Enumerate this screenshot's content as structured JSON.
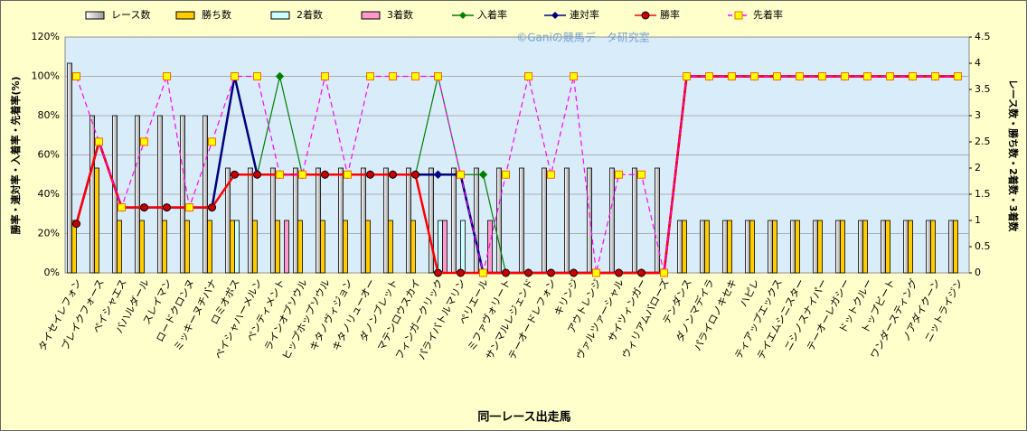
{
  "chart_data": {
    "type": "bar",
    "title": "©Ganiの競馬データ研究室",
    "xlabel": "同一レース出走馬",
    "ylabel": "勝率・連対率・入着率・先着率(%)",
    "y2label": "レース数・勝ち数・2着数・3着数",
    "categories": [
      "タイセイレフォン",
      "ブレイクフォース",
      "ペイシャエス",
      "バハルダール",
      "スレイマン",
      "ロードクロンヌ",
      "ミッキーヌチバナ",
      "ロミオボス",
      "ペイシャハーメルン",
      "ペンティメント",
      "ラインオブソウル",
      "ヒップホップソウル",
      "キタノヴィジョン",
      "キタノリューオー",
      "ダノンブレット",
      "マテンロウスカイ",
      "フィンガークリック",
      "パライバトルマリン",
      "ペリエール",
      "ミファヴォリート",
      "サンマルレジェンド",
      "テーオードレフォン",
      "キリンジ",
      "アウトレンジ",
      "ヴァルツァーシャル",
      "サイツィンガー",
      "ウィリアムバローズ",
      "テンダンス",
      "ダノンマデイラ",
      "パライロノキセキ",
      "ハピレ",
      "ティアップエックス",
      "テイエムシニスター",
      "ニシノスナイパー",
      "テーオーレガシー",
      "ドットクルー",
      "トップビート",
      "ワンダースティング",
      "ノアダイクーン",
      "ニットライジン"
    ],
    "ylim": [
      0,
      120
    ],
    "yticks": [
      {
        "value": 0,
        "label": "0%"
      },
      {
        "value": 20,
        "label": "20%"
      },
      {
        "value": 40,
        "label": "40%"
      },
      {
        "value": 60,
        "label": "60%"
      },
      {
        "value": 80,
        "label": "80%"
      },
      {
        "value": 100,
        "label": "100%"
      },
      {
        "value": 120,
        "label": "120%"
      }
    ],
    "y2lim": [
      0,
      4.5
    ],
    "y2ticks": [
      0,
      0.5,
      1,
      1.5,
      2,
      2.5,
      3,
      3.5,
      4,
      4.5
    ],
    "grid": true,
    "series": [
      {
        "name": "レース数",
        "type": "bar",
        "axis": "y2",
        "color": "#f4f4f4",
        "values": [
          4,
          3,
          3,
          3,
          3,
          3,
          3,
          2,
          2,
          2,
          2,
          2,
          2,
          2,
          2,
          2,
          2,
          2,
          2,
          2,
          2,
          2,
          2,
          2,
          2,
          2,
          2,
          1,
          1,
          1,
          1,
          1,
          1,
          1,
          1,
          1,
          1,
          1,
          1,
          1
        ]
      },
      {
        "name": "勝ち数",
        "type": "bar",
        "axis": "y2",
        "color": "#ffcc00",
        "values": [
          1,
          2,
          1,
          1,
          1,
          1,
          1,
          1,
          1,
          1,
          1,
          1,
          1,
          1,
          1,
          1,
          0,
          0,
          0,
          0,
          0,
          0,
          0,
          0,
          0,
          0,
          0,
          1,
          1,
          1,
          1,
          1,
          1,
          1,
          1,
          1,
          1,
          1,
          1,
          1
        ]
      },
      {
        "name": "2着数",
        "type": "bar",
        "axis": "y2",
        "color": "#ccffff",
        "values": [
          0,
          0,
          0,
          0,
          0,
          0,
          0,
          1,
          0,
          0,
          0,
          0,
          0,
          0,
          0,
          0,
          1,
          1,
          0,
          0,
          0,
          0,
          0,
          0,
          0,
          0,
          0,
          0,
          0,
          0,
          0,
          0,
          0,
          0,
          0,
          0,
          0,
          0,
          0,
          0
        ]
      },
      {
        "name": "3着数",
        "type": "bar",
        "axis": "y2",
        "color": "#ff99cc",
        "values": [
          0,
          0,
          0,
          0,
          0,
          0,
          0,
          0,
          0,
          1,
          0,
          0,
          0,
          0,
          0,
          0,
          1,
          0,
          1,
          0,
          0,
          0,
          0,
          0,
          0,
          0,
          0,
          0,
          0,
          0,
          0,
          0,
          0,
          0,
          0,
          0,
          0,
          0,
          0,
          0
        ]
      },
      {
        "name": "入着率",
        "type": "line",
        "color": "#008000",
        "marker": "diamond",
        "marker_color": "#008000",
        "values": [
          25,
          66.7,
          33.3,
          33.3,
          33.3,
          33.3,
          33.3,
          100,
          50,
          100,
          50,
          50,
          50,
          50,
          50,
          50,
          100,
          50,
          50,
          0,
          0,
          0,
          0,
          0,
          0,
          0,
          0,
          100,
          100,
          100,
          100,
          100,
          100,
          100,
          100,
          100,
          100,
          100,
          100,
          100
        ]
      },
      {
        "name": "連対率",
        "type": "line",
        "color": "#000080",
        "marker": "diamond",
        "marker_color": "#000080",
        "values": [
          25,
          66.7,
          33.3,
          33.3,
          33.3,
          33.3,
          33.3,
          100,
          50,
          50,
          50,
          50,
          50,
          50,
          50,
          50,
          50,
          50,
          0,
          0,
          0,
          0,
          0,
          0,
          0,
          0,
          0,
          100,
          100,
          100,
          100,
          100,
          100,
          100,
          100,
          100,
          100,
          100,
          100,
          100
        ]
      },
      {
        "name": "勝率",
        "type": "line",
        "color": "#ff0000",
        "marker": "circle",
        "marker_color": "#cc0000",
        "values": [
          25,
          66.7,
          33.3,
          33.3,
          33.3,
          33.3,
          33.3,
          50,
          50,
          50,
          50,
          50,
          50,
          50,
          50,
          50,
          0,
          0,
          0,
          0,
          0,
          0,
          0,
          0,
          0,
          0,
          0,
          100,
          100,
          100,
          100,
          100,
          100,
          100,
          100,
          100,
          100,
          100,
          100,
          100
        ]
      },
      {
        "name": "先着率",
        "type": "line",
        "color": "#ff00ff",
        "marker": "square",
        "marker_color": "#ffff00",
        "dash": true,
        "values": [
          100,
          66.7,
          33.3,
          66.7,
          100,
          33.3,
          66.7,
          100,
          100,
          50,
          50,
          100,
          50,
          100,
          100,
          100,
          100,
          50,
          0,
          50,
          100,
          50,
          100,
          0,
          50,
          50,
          0,
          100,
          100,
          100,
          100,
          100,
          100,
          100,
          100,
          100,
          100,
          100,
          100,
          100
        ]
      }
    ]
  }
}
